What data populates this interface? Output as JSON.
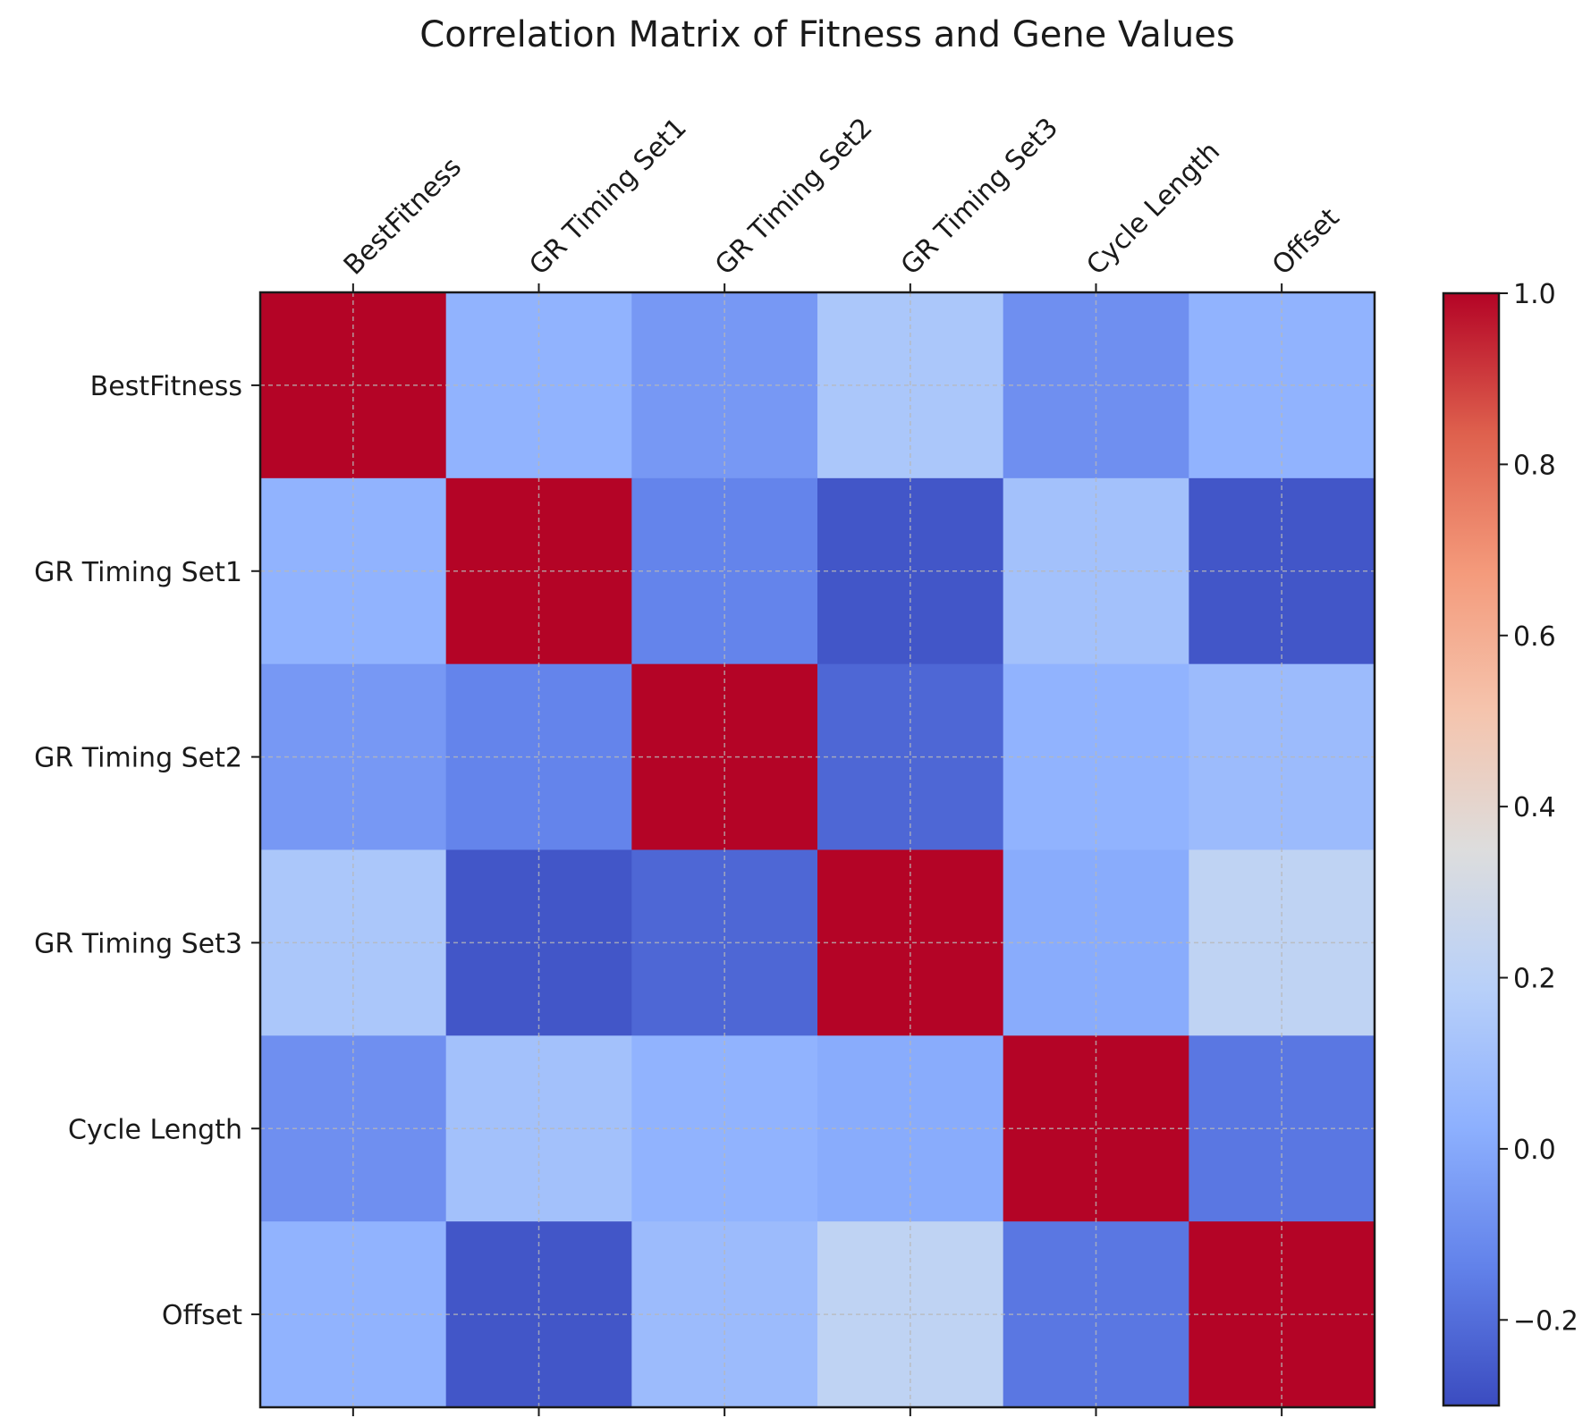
{
  "chart_data": {
    "type": "heatmap",
    "title": "Correlation Matrix of Fitness and Gene Values",
    "labels": [
      "BestFitness",
      "GR Timing Set1",
      "GR Timing Set2",
      "GR Timing Set3",
      "Cycle Length",
      "Offset"
    ],
    "matrix": [
      [
        1.0,
        0.04,
        -0.06,
        0.14,
        -0.09,
        0.04
      ],
      [
        0.04,
        1.0,
        -0.13,
        -0.27,
        0.11,
        -0.27
      ],
      [
        -0.06,
        -0.13,
        1.0,
        -0.22,
        0.04,
        0.08
      ],
      [
        0.14,
        -0.27,
        -0.22,
        1.0,
        0.01,
        0.22
      ],
      [
        -0.09,
        0.11,
        0.04,
        0.01,
        1.0,
        -0.17
      ],
      [
        0.04,
        -0.27,
        0.08,
        0.22,
        -0.17,
        1.0
      ]
    ],
    "colormap": "coolwarm",
    "vmin": -0.3,
    "vmax": 1.0,
    "colorbar_ticks": [
      -0.2,
      0.0,
      0.2,
      0.4,
      0.6,
      0.8,
      1.0
    ],
    "colorbar_tick_labels": [
      "−0.2",
      "0.0",
      "0.2",
      "0.4",
      "0.6",
      "0.8",
      "1.0"
    ],
    "grid": true
  }
}
